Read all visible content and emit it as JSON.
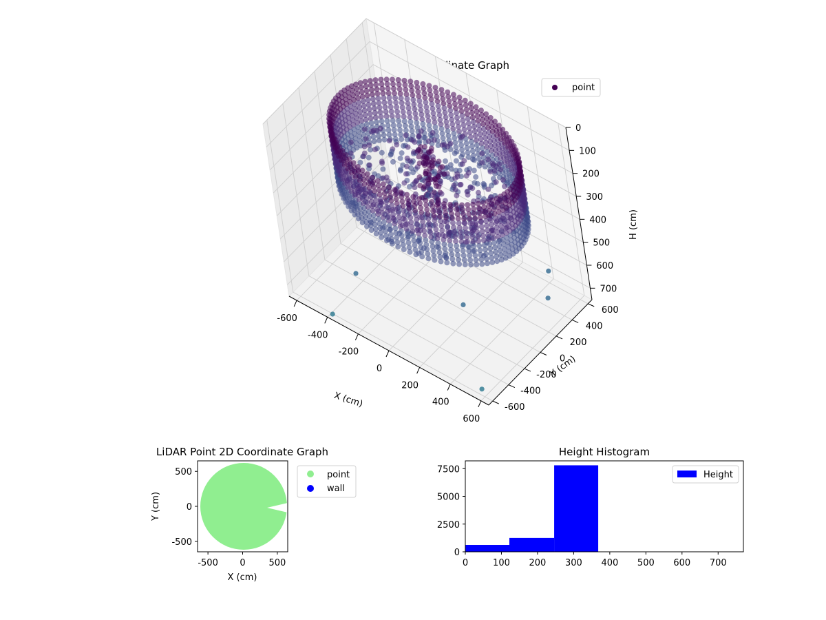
{
  "chart_data": [
    {
      "type": "scatter",
      "projection": "3d",
      "title": "LiDAR Point 3D Coordinate Graph",
      "xlabel": "X (cm)",
      "ylabel": "Y (cm)",
      "zlabel": "H (cm)",
      "x_ticks": [
        "-600",
        "-400",
        "-200",
        "0",
        "200",
        "400",
        "600"
      ],
      "y_ticks": [
        "-600",
        "-400",
        "-200",
        "0",
        "200",
        "400",
        "600"
      ],
      "z_ticks": [
        "0",
        "100",
        "200",
        "300",
        "400",
        "500",
        "600",
        "700"
      ],
      "xlim": [
        -650,
        650
      ],
      "ylim": [
        -650,
        650
      ],
      "zlim": [
        0,
        750
      ],
      "z_inverted": true,
      "grid": true,
      "colormap": "viridis",
      "legend": {
        "position": "top-right",
        "entries": [
          "point"
        ]
      },
      "series": [
        {
          "name": "point",
          "description_ring": {
            "center": [
              0,
              80
            ],
            "radius": 560,
            "h_range": [
              100,
              360
            ]
          },
          "outliers": [
            {
              "x": -340,
              "y": -360,
              "h": 640
            },
            {
              "x": 180,
              "y": -40,
              "h": 700
            },
            {
              "x": -380,
              "y": -620,
              "h": 740
            },
            {
              "x": 600,
              "y": 300,
              "h": 520
            },
            {
              "x": 600,
              "y": 250,
              "h": 620
            },
            {
              "x": 560,
              "y": -560,
              "h": 745
            }
          ]
        }
      ],
      "colors": {
        "series": "#440154",
        "low": "#482878",
        "mid": "#3e4a89",
        "high": "#31688e"
      }
    },
    {
      "type": "scatter",
      "title": "LiDAR Point 2D Coordinate Graph",
      "xlabel": "X (cm)",
      "ylabel": "Y (cm)",
      "x_ticks": [
        "-500",
        "0",
        "500"
      ],
      "y_ticks": [
        "-500",
        "0",
        "500"
      ],
      "xlim": [
        -650,
        650
      ],
      "ylim": [
        -650,
        650
      ],
      "legend": {
        "position": "outside-right",
        "entries": [
          "point",
          "wall"
        ]
      },
      "series": [
        {
          "name": "point",
          "color": "#90ee90",
          "region": {
            "center": [
              0,
              0
            ],
            "radius": 620
          }
        },
        {
          "name": "wall",
          "color": "#0000ff",
          "points": []
        }
      ]
    },
    {
      "type": "bar",
      "title": "Height Histogram",
      "x_ticks": [
        "0",
        "100",
        "200",
        "300",
        "400",
        "500",
        "600",
        "700"
      ],
      "y_ticks": [
        "0",
        "2500",
        "5000",
        "7500"
      ],
      "xlim": [
        0,
        770
      ],
      "ylim": [
        0,
        8200
      ],
      "legend": {
        "position": "top-right",
        "entries": [
          "Height"
        ]
      },
      "bins": [
        {
          "x0": 0,
          "x1": 122,
          "count": 620
        },
        {
          "x0": 122,
          "x1": 246,
          "count": 1250
        },
        {
          "x0": 246,
          "x1": 368,
          "count": 7800
        },
        {
          "x0": 368,
          "x1": 490,
          "count": 0
        },
        {
          "x0": 490,
          "x1": 613,
          "count": 0
        },
        {
          "x0": 613,
          "x1": 735,
          "count": 0
        }
      ],
      "series": [
        {
          "name": "Height",
          "color": "#0000ff"
        }
      ]
    }
  ]
}
